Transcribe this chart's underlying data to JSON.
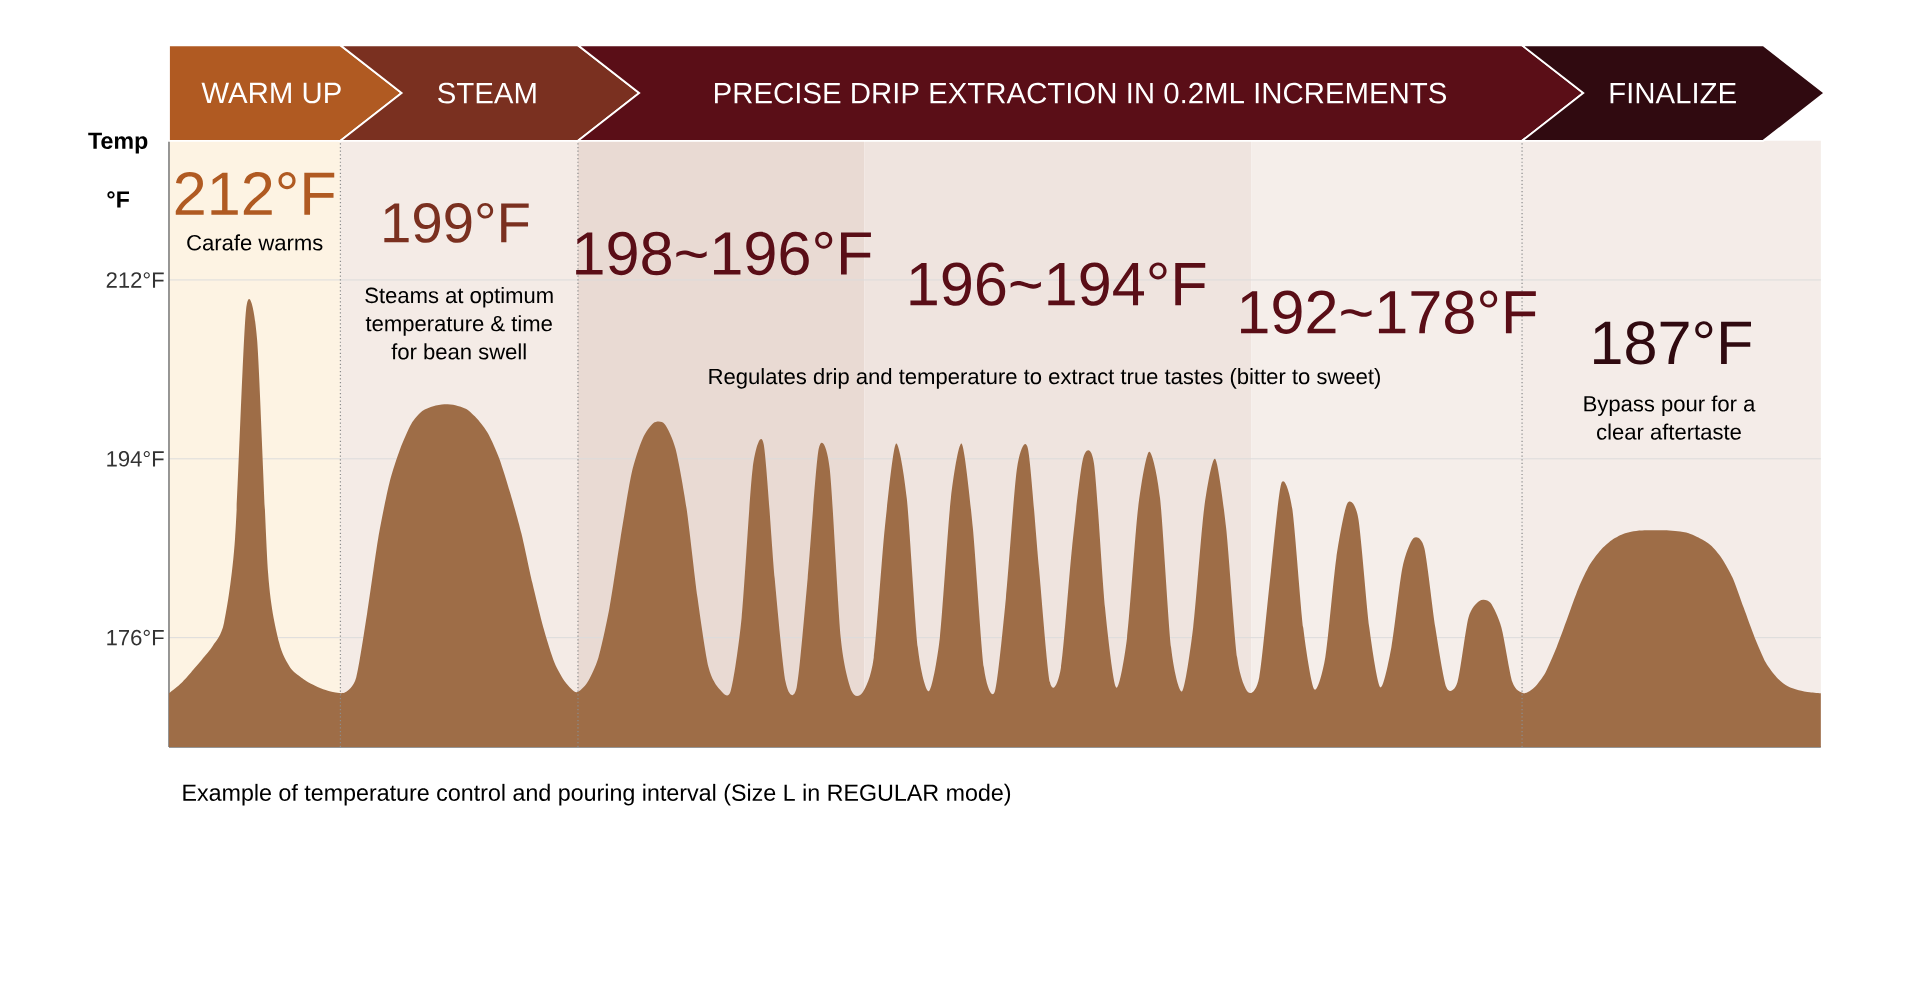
{
  "chart_data": {
    "type": "area",
    "ylabel": "Temp °F",
    "categories": [
      null,
      null,
      null,
      null,
      null,
      null,
      null,
      null,
      null,
      null,
      null,
      null,
      null,
      null,
      null,
      null,
      null,
      null,
      null,
      null,
      null,
      null,
      null,
      null,
      null,
      null,
      null,
      null,
      null,
      null,
      null,
      null,
      null,
      null,
      null,
      null,
      null,
      null,
      null,
      null,
      null,
      null,
      null,
      null,
      null,
      null,
      null,
      null,
      null,
      null,
      null,
      null,
      null,
      null,
      null,
      null,
      null,
      null,
      null,
      null,
      null,
      null,
      null,
      null,
      null,
      null,
      null,
      null,
      null,
      null,
      null,
      null,
      null,
      null,
      null,
      null,
      null,
      null,
      null,
      null,
      null,
      null,
      null,
      null,
      null,
      null,
      null,
      null,
      null,
      null,
      null,
      null,
      null,
      null,
      null,
      null,
      null,
      null,
      null,
      null,
      null,
      null,
      null,
      null,
      null,
      null,
      null,
      null,
      null,
      null,
      null,
      null,
      null,
      null,
      null,
      null,
      null,
      null,
      null,
      null,
      null,
      null,
      null,
      null,
      null,
      null,
      null,
      null,
      null,
      null,
      null,
      null,
      null,
      null,
      null,
      null,
      null,
      null,
      null,
      null,
      null,
      null,
      null,
      null,
      null,
      null,
      null,
      null,
      null,
      null,
      null
    ],
    "values": [
      170.4,
      171.3,
      172.5,
      173.8,
      175.2,
      177.5,
      186,
      209,
      206,
      182.5,
      175.5,
      173,
      172,
      171.3,
      170.8,
      170.5,
      170.5,
      172,
      178.5,
      186,
      191.5,
      195,
      197.5,
      198.8,
      199.3,
      199.5,
      199.4,
      199,
      198,
      196.5,
      194,
      190.5,
      186.5,
      181.5,
      177,
      173.5,
      171.5,
      170.5,
      171.5,
      174,
      179,
      186,
      192.5,
      196,
      197.6,
      197.5,
      195,
      189,
      180,
      173,
      170.8,
      170.6,
      178,
      193,
      195.5,
      182,
      171.5,
      171,
      182,
      195,
      193,
      176,
      170.6,
      170.5,
      174,
      187,
      195.5,
      190,
      175,
      170.6,
      176,
      190,
      195.5,
      187,
      173,
      170.6,
      180,
      193,
      195,
      183,
      171.5,
      173,
      185,
      194,
      193.5,
      179,
      171,
      176,
      189,
      194.7,
      190,
      175,
      170.6,
      177,
      189,
      194,
      187,
      174,
      170.5,
      172,
      182,
      191.5,
      189,
      177,
      170.8,
      174,
      184,
      189.5,
      188,
      177,
      171,
      175,
      183,
      186,
      185,
      177,
      171,
      171.5,
      178,
      179.7,
      179.5,
      177,
      171.5,
      170.4,
      171,
      172.5,
      175,
      178,
      181,
      183.3,
      184.8,
      185.8,
      186.4,
      186.7,
      186.8,
      186.8,
      186.8,
      186.7,
      186.5,
      186,
      185.3,
      184,
      182,
      179,
      176,
      173.5,
      172,
      171.1,
      170.7,
      170.5,
      170.4
    ],
    "color": "#9e6d47",
    "ylim": [
      165,
      226
    ],
    "yticks": [
      {
        "value": 176,
        "label": "176°F"
      },
      {
        "value": 194,
        "label": "194°F"
      },
      {
        "value": 212,
        "label": "212°F"
      }
    ],
    "grid": "y",
    "tick_labels": "y",
    "annotations": [
      "WARM UP",
      "STEAM",
      "PRECISE DRIP EXTRACTION IN 0.2ML INCREMENTS",
      "FINALIZE",
      "212°F",
      "Carafe warms",
      "199°F",
      "Steams at optimum temperature & time for bean swell",
      "198~196°F",
      "196~194°F",
      "192~178°F",
      "Regulates drip and temperature to extract true tastes (bitter to sweet)",
      "187°F",
      "Bypass pour for a clear aftertaste",
      "Example of temperature control and pouring interval (Size L in REGULAR mode)"
    ]
  }
}
